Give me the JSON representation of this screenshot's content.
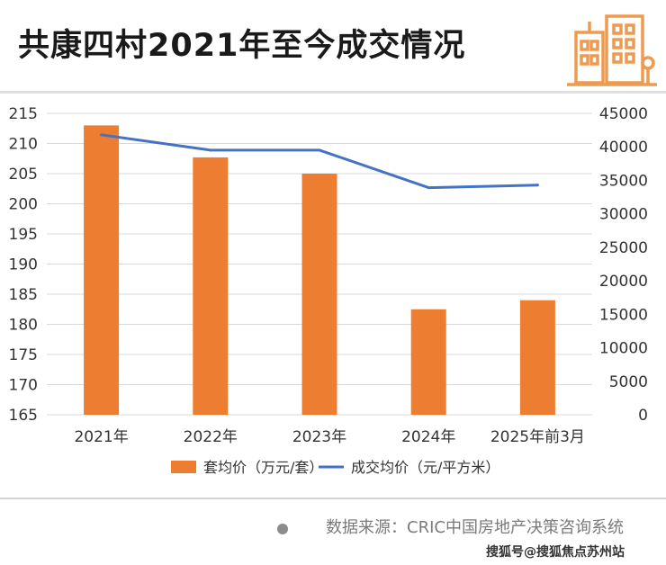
{
  "title": "共康四村2021年至今成交情况",
  "source_text": "数据来源：CRIC中国房地产决策咨询系统",
  "watermark": "搜狐号@搜狐焦点苏州站",
  "colors": {
    "bar": "#ED7D31",
    "line": "#4472C4",
    "icon": "#EC9B50",
    "grid": "#D9D9D9",
    "text": "#333333"
  },
  "chart_data": {
    "type": "bar+line",
    "categories": [
      "2021年",
      "2022年",
      "2023年",
      "2024年",
      "2025年前3月"
    ],
    "series": [
      {
        "name": "套均价（万元/套）",
        "type": "bar",
        "axis": "left",
        "values": [
          213,
          207.7,
          205,
          182.5,
          184
        ]
      },
      {
        "name": "成交均价（元/平方米）",
        "type": "line",
        "axis": "right",
        "values": [
          41800,
          39500,
          39500,
          33900,
          34300
        ]
      }
    ],
    "y_left": {
      "min": 165,
      "max": 215,
      "ticks": [
        215,
        210,
        205,
        200,
        195,
        190,
        185,
        180,
        175,
        170,
        165
      ]
    },
    "y_right": {
      "min": 0,
      "max": 45000,
      "ticks": [
        45000,
        40000,
        35000,
        30000,
        25000,
        20000,
        15000,
        10000,
        5000,
        0
      ]
    },
    "grid": true,
    "legend_position": "bottom"
  }
}
